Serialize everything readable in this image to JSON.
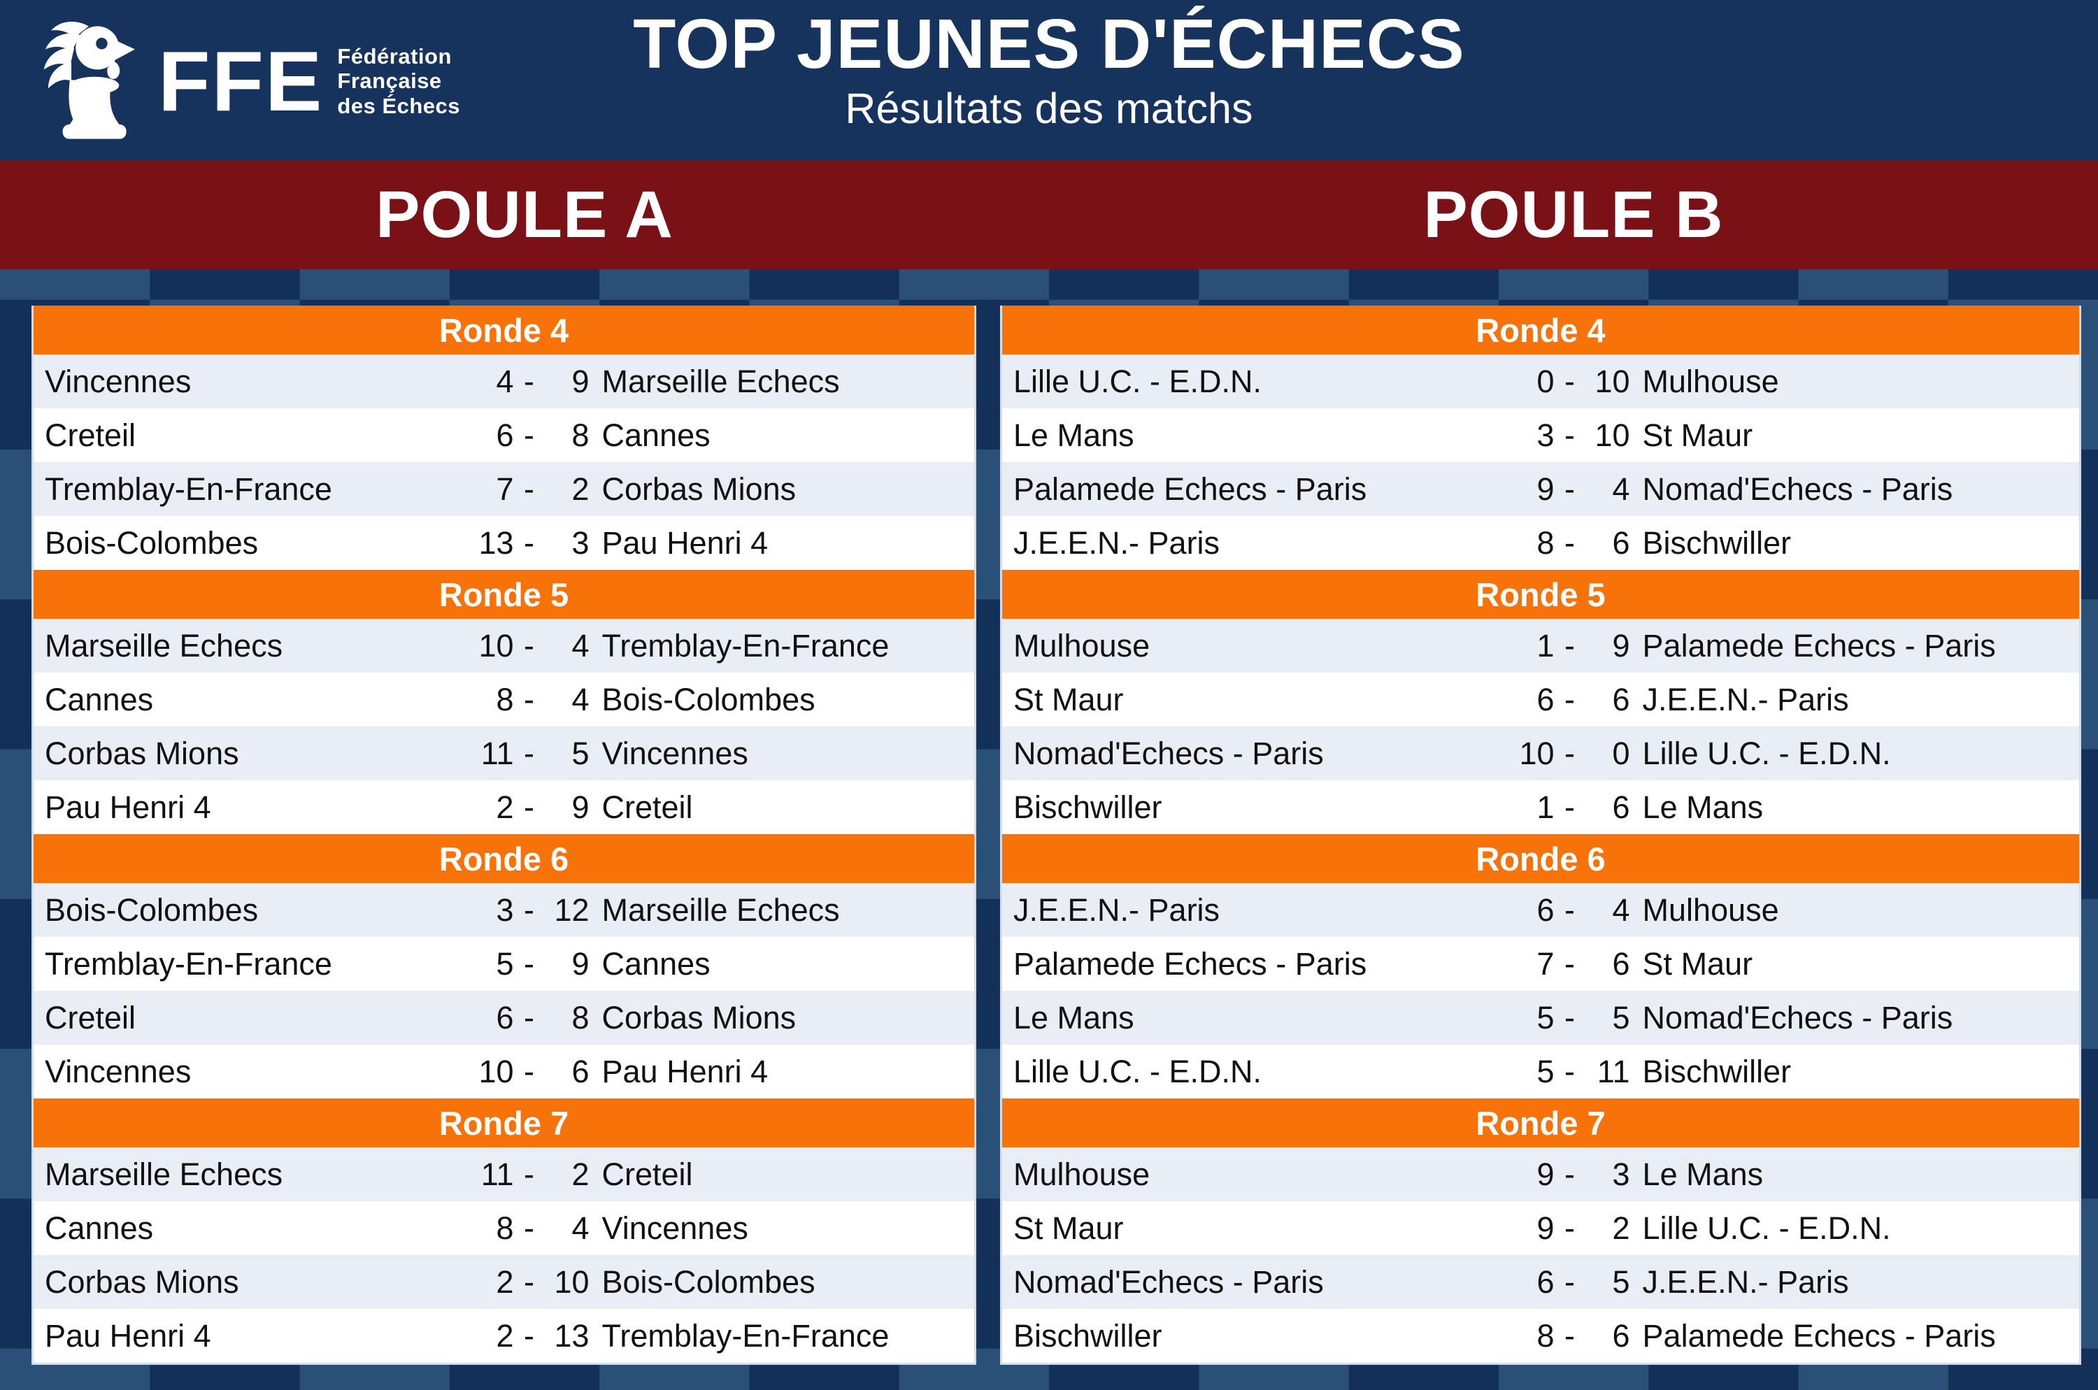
{
  "header": {
    "logo": {
      "acronym": "FFE",
      "org_line1": "Fédération",
      "org_line2": "Française",
      "org_line3": "des Échecs",
      "icon": "ffe-rooster-pawn-icon"
    },
    "title": "TOP JEUNES D'ÉCHECS",
    "subtitle": "Résultats des matchs"
  },
  "score_separator": "-",
  "colors": {
    "header_blue": "#16335e",
    "band_red": "#7a1117",
    "round_orange": "#f7730a",
    "tile_dark": "#133158",
    "tile_light": "#2a5078",
    "row_light": "#e9edf5",
    "row_white": "#ffffff"
  },
  "pools": [
    {
      "label": "POULE A",
      "rounds": [
        {
          "title": "Ronde 4",
          "matches": [
            {
              "home": "Vincennes",
              "home_score": "4",
              "away_score": "9",
              "away": "Marseille Echecs"
            },
            {
              "home": "Creteil",
              "home_score": "6",
              "away_score": "8",
              "away": "Cannes"
            },
            {
              "home": "Tremblay-En-France",
              "home_score": "7",
              "away_score": "2",
              "away": "Corbas Mions"
            },
            {
              "home": "Bois-Colombes",
              "home_score": "13",
              "away_score": "3",
              "away": "Pau Henri 4"
            }
          ]
        },
        {
          "title": "Ronde 5",
          "matches": [
            {
              "home": "Marseille Echecs",
              "home_score": "10",
              "away_score": "4",
              "away": "Tremblay-En-France"
            },
            {
              "home": "Cannes",
              "home_score": "8",
              "away_score": "4",
              "away": "Bois-Colombes"
            },
            {
              "home": "Corbas Mions",
              "home_score": "11",
              "away_score": "5",
              "away": "Vincennes"
            },
            {
              "home": "Pau Henri 4",
              "home_score": "2",
              "away_score": "9",
              "away": "Creteil"
            }
          ]
        },
        {
          "title": "Ronde 6",
          "matches": [
            {
              "home": "Bois-Colombes",
              "home_score": "3",
              "away_score": "12",
              "away": "Marseille Echecs"
            },
            {
              "home": "Tremblay-En-France",
              "home_score": "5",
              "away_score": "9",
              "away": "Cannes"
            },
            {
              "home": "Creteil",
              "home_score": "6",
              "away_score": "8",
              "away": "Corbas Mions"
            },
            {
              "home": "Vincennes",
              "home_score": "10",
              "away_score": "6",
              "away": "Pau Henri 4"
            }
          ]
        },
        {
          "title": "Ronde 7",
          "matches": [
            {
              "home": "Marseille Echecs",
              "home_score": "11",
              "away_score": "2",
              "away": "Creteil"
            },
            {
              "home": "Cannes",
              "home_score": "8",
              "away_score": "4",
              "away": "Vincennes"
            },
            {
              "home": "Corbas Mions",
              "home_score": "2",
              "away_score": "10",
              "away": "Bois-Colombes"
            },
            {
              "home": "Pau Henri 4",
              "home_score": "2",
              "away_score": "13",
              "away": "Tremblay-En-France"
            }
          ]
        }
      ]
    },
    {
      "label": "POULE B",
      "rounds": [
        {
          "title": "Ronde 4",
          "matches": [
            {
              "home": "Lille U.C. - E.D.N.",
              "home_score": "0",
              "away_score": "10",
              "away": "Mulhouse"
            },
            {
              "home": "Le Mans",
              "home_score": "3",
              "away_score": "10",
              "away": "St Maur"
            },
            {
              "home": "Palamede Echecs - Paris",
              "home_score": "9",
              "away_score": "4",
              "away": "Nomad'Echecs - Paris"
            },
            {
              "home": "J.E.E.N.- Paris",
              "home_score": "8",
              "away_score": "6",
              "away": "Bischwiller"
            }
          ]
        },
        {
          "title": "Ronde 5",
          "matches": [
            {
              "home": "Mulhouse",
              "home_score": "1",
              "away_score": "9",
              "away": "Palamede Echecs - Paris"
            },
            {
              "home": "St Maur",
              "home_score": "6",
              "away_score": "6",
              "away": "J.E.E.N.- Paris"
            },
            {
              "home": "Nomad'Echecs - Paris",
              "home_score": "10",
              "away_score": "0",
              "away": "Lille U.C. - E.D.N."
            },
            {
              "home": "Bischwiller",
              "home_score": "1",
              "away_score": "6",
              "away": "Le Mans"
            }
          ]
        },
        {
          "title": "Ronde 6",
          "matches": [
            {
              "home": "J.E.E.N.- Paris",
              "home_score": "6",
              "away_score": "4",
              "away": "Mulhouse"
            },
            {
              "home": "Palamede Echecs - Paris",
              "home_score": "7",
              "away_score": "6",
              "away": "St Maur"
            },
            {
              "home": "Le Mans",
              "home_score": "5",
              "away_score": "5",
              "away": "Nomad'Echecs - Paris"
            },
            {
              "home": "Lille U.C. - E.D.N.",
              "home_score": "5",
              "away_score": "11",
              "away": "Bischwiller"
            }
          ]
        },
        {
          "title": "Ronde 7",
          "matches": [
            {
              "home": "Mulhouse",
              "home_score": "9",
              "away_score": "3",
              "away": "Le Mans"
            },
            {
              "home": "St Maur",
              "home_score": "9",
              "away_score": "2",
              "away": "Lille U.C. - E.D.N."
            },
            {
              "home": "Nomad'Echecs - Paris",
              "home_score": "6",
              "away_score": "5",
              "away": "J.E.E.N.- Paris"
            },
            {
              "home": "Bischwiller",
              "home_score": "8",
              "away_score": "6",
              "away": "Palamede Echecs - Paris"
            }
          ]
        }
      ]
    }
  ]
}
